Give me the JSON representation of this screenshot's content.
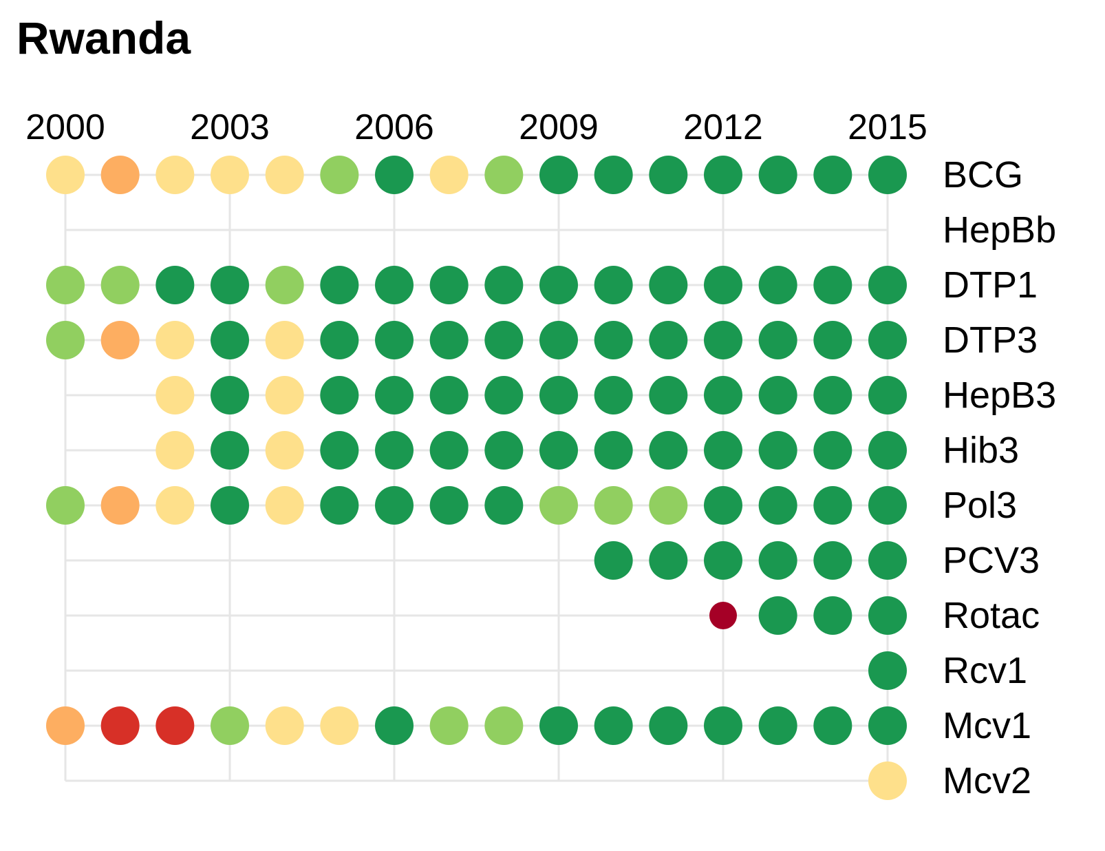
{
  "chart_data": {
    "type": "scatter",
    "title": "Rwanda",
    "x_tick_labels": [
      "2000",
      "2003",
      "2006",
      "2009",
      "2012",
      "2015"
    ],
    "x_ticks": [
      2000,
      2003,
      2006,
      2009,
      2012,
      2015
    ],
    "xlim": [
      2000,
      2015
    ],
    "grid": true,
    "color_scale": {
      "dark_green": "#1a9850",
      "light_green": "#91cf60",
      "pale_yellow": "#fee08b",
      "orange": "#fdae61",
      "red": "#d73027",
      "dark_red": "#a50026"
    },
    "rows": [
      {
        "label": "BCG",
        "points": [
          {
            "x": 2000,
            "c": "pale_yellow"
          },
          {
            "x": 2001,
            "c": "orange"
          },
          {
            "x": 2002,
            "c": "pale_yellow"
          },
          {
            "x": 2003,
            "c": "pale_yellow"
          },
          {
            "x": 2004,
            "c": "pale_yellow"
          },
          {
            "x": 2005,
            "c": "light_green"
          },
          {
            "x": 2006,
            "c": "dark_green"
          },
          {
            "x": 2007,
            "c": "pale_yellow"
          },
          {
            "x": 2008,
            "c": "light_green"
          },
          {
            "x": 2009,
            "c": "dark_green"
          },
          {
            "x": 2010,
            "c": "dark_green"
          },
          {
            "x": 2011,
            "c": "dark_green"
          },
          {
            "x": 2012,
            "c": "dark_green"
          },
          {
            "x": 2013,
            "c": "dark_green"
          },
          {
            "x": 2014,
            "c": "dark_green"
          },
          {
            "x": 2015,
            "c": "dark_green"
          }
        ]
      },
      {
        "label": "HepBb",
        "points": []
      },
      {
        "label": "DTP1",
        "points": [
          {
            "x": 2000,
            "c": "light_green"
          },
          {
            "x": 2001,
            "c": "light_green"
          },
          {
            "x": 2002,
            "c": "dark_green"
          },
          {
            "x": 2003,
            "c": "dark_green"
          },
          {
            "x": 2004,
            "c": "light_green"
          },
          {
            "x": 2005,
            "c": "dark_green"
          },
          {
            "x": 2006,
            "c": "dark_green"
          },
          {
            "x": 2007,
            "c": "dark_green"
          },
          {
            "x": 2008,
            "c": "dark_green"
          },
          {
            "x": 2009,
            "c": "dark_green"
          },
          {
            "x": 2010,
            "c": "dark_green"
          },
          {
            "x": 2011,
            "c": "dark_green"
          },
          {
            "x": 2012,
            "c": "dark_green"
          },
          {
            "x": 2013,
            "c": "dark_green"
          },
          {
            "x": 2014,
            "c": "dark_green"
          },
          {
            "x": 2015,
            "c": "dark_green"
          }
        ]
      },
      {
        "label": "DTP3",
        "points": [
          {
            "x": 2000,
            "c": "light_green"
          },
          {
            "x": 2001,
            "c": "orange"
          },
          {
            "x": 2002,
            "c": "pale_yellow"
          },
          {
            "x": 2003,
            "c": "dark_green"
          },
          {
            "x": 2004,
            "c": "pale_yellow"
          },
          {
            "x": 2005,
            "c": "dark_green"
          },
          {
            "x": 2006,
            "c": "dark_green"
          },
          {
            "x": 2007,
            "c": "dark_green"
          },
          {
            "x": 2008,
            "c": "dark_green"
          },
          {
            "x": 2009,
            "c": "dark_green"
          },
          {
            "x": 2010,
            "c": "dark_green"
          },
          {
            "x": 2011,
            "c": "dark_green"
          },
          {
            "x": 2012,
            "c": "dark_green"
          },
          {
            "x": 2013,
            "c": "dark_green"
          },
          {
            "x": 2014,
            "c": "dark_green"
          },
          {
            "x": 2015,
            "c": "dark_green"
          }
        ]
      },
      {
        "label": "HepB3",
        "points": [
          {
            "x": 2002,
            "c": "pale_yellow"
          },
          {
            "x": 2003,
            "c": "dark_green"
          },
          {
            "x": 2004,
            "c": "pale_yellow"
          },
          {
            "x": 2005,
            "c": "dark_green"
          },
          {
            "x": 2006,
            "c": "dark_green"
          },
          {
            "x": 2007,
            "c": "dark_green"
          },
          {
            "x": 2008,
            "c": "dark_green"
          },
          {
            "x": 2009,
            "c": "dark_green"
          },
          {
            "x": 2010,
            "c": "dark_green"
          },
          {
            "x": 2011,
            "c": "dark_green"
          },
          {
            "x": 2012,
            "c": "dark_green"
          },
          {
            "x": 2013,
            "c": "dark_green"
          },
          {
            "x": 2014,
            "c": "dark_green"
          },
          {
            "x": 2015,
            "c": "dark_green"
          }
        ]
      },
      {
        "label": "Hib3",
        "points": [
          {
            "x": 2002,
            "c": "pale_yellow"
          },
          {
            "x": 2003,
            "c": "dark_green"
          },
          {
            "x": 2004,
            "c": "pale_yellow"
          },
          {
            "x": 2005,
            "c": "dark_green"
          },
          {
            "x": 2006,
            "c": "dark_green"
          },
          {
            "x": 2007,
            "c": "dark_green"
          },
          {
            "x": 2008,
            "c": "dark_green"
          },
          {
            "x": 2009,
            "c": "dark_green"
          },
          {
            "x": 2010,
            "c": "dark_green"
          },
          {
            "x": 2011,
            "c": "dark_green"
          },
          {
            "x": 2012,
            "c": "dark_green"
          },
          {
            "x": 2013,
            "c": "dark_green"
          },
          {
            "x": 2014,
            "c": "dark_green"
          },
          {
            "x": 2015,
            "c": "dark_green"
          }
        ]
      },
      {
        "label": "Pol3",
        "points": [
          {
            "x": 2000,
            "c": "light_green"
          },
          {
            "x": 2001,
            "c": "orange"
          },
          {
            "x": 2002,
            "c": "pale_yellow"
          },
          {
            "x": 2003,
            "c": "dark_green"
          },
          {
            "x": 2004,
            "c": "pale_yellow"
          },
          {
            "x": 2005,
            "c": "dark_green"
          },
          {
            "x": 2006,
            "c": "dark_green"
          },
          {
            "x": 2007,
            "c": "dark_green"
          },
          {
            "x": 2008,
            "c": "dark_green"
          },
          {
            "x": 2009,
            "c": "light_green"
          },
          {
            "x": 2010,
            "c": "light_green"
          },
          {
            "x": 2011,
            "c": "light_green"
          },
          {
            "x": 2012,
            "c": "dark_green"
          },
          {
            "x": 2013,
            "c": "dark_green"
          },
          {
            "x": 2014,
            "c": "dark_green"
          },
          {
            "x": 2015,
            "c": "dark_green"
          }
        ]
      },
      {
        "label": "PCV3",
        "points": [
          {
            "x": 2010,
            "c": "dark_green"
          },
          {
            "x": 2011,
            "c": "dark_green"
          },
          {
            "x": 2012,
            "c": "dark_green"
          },
          {
            "x": 2013,
            "c": "dark_green"
          },
          {
            "x": 2014,
            "c": "dark_green"
          },
          {
            "x": 2015,
            "c": "dark_green"
          }
        ]
      },
      {
        "label": "Rotac",
        "points": [
          {
            "x": 2012,
            "c": "dark_red",
            "small": true
          },
          {
            "x": 2013,
            "c": "dark_green"
          },
          {
            "x": 2014,
            "c": "dark_green"
          },
          {
            "x": 2015,
            "c": "dark_green"
          }
        ]
      },
      {
        "label": "Rcv1",
        "points": [
          {
            "x": 2015,
            "c": "dark_green"
          }
        ]
      },
      {
        "label": "Mcv1",
        "points": [
          {
            "x": 2000,
            "c": "orange"
          },
          {
            "x": 2001,
            "c": "red"
          },
          {
            "x": 2002,
            "c": "red"
          },
          {
            "x": 2003,
            "c": "light_green"
          },
          {
            "x": 2004,
            "c": "pale_yellow"
          },
          {
            "x": 2005,
            "c": "pale_yellow"
          },
          {
            "x": 2006,
            "c": "dark_green"
          },
          {
            "x": 2007,
            "c": "light_green"
          },
          {
            "x": 2008,
            "c": "light_green"
          },
          {
            "x": 2009,
            "c": "dark_green"
          },
          {
            "x": 2010,
            "c": "dark_green"
          },
          {
            "x": 2011,
            "c": "dark_green"
          },
          {
            "x": 2012,
            "c": "dark_green"
          },
          {
            "x": 2013,
            "c": "dark_green"
          },
          {
            "x": 2014,
            "c": "dark_green"
          },
          {
            "x": 2015,
            "c": "dark_green"
          }
        ]
      },
      {
        "label": "Mcv2",
        "points": [
          {
            "x": 2015,
            "c": "pale_yellow"
          }
        ]
      }
    ]
  }
}
